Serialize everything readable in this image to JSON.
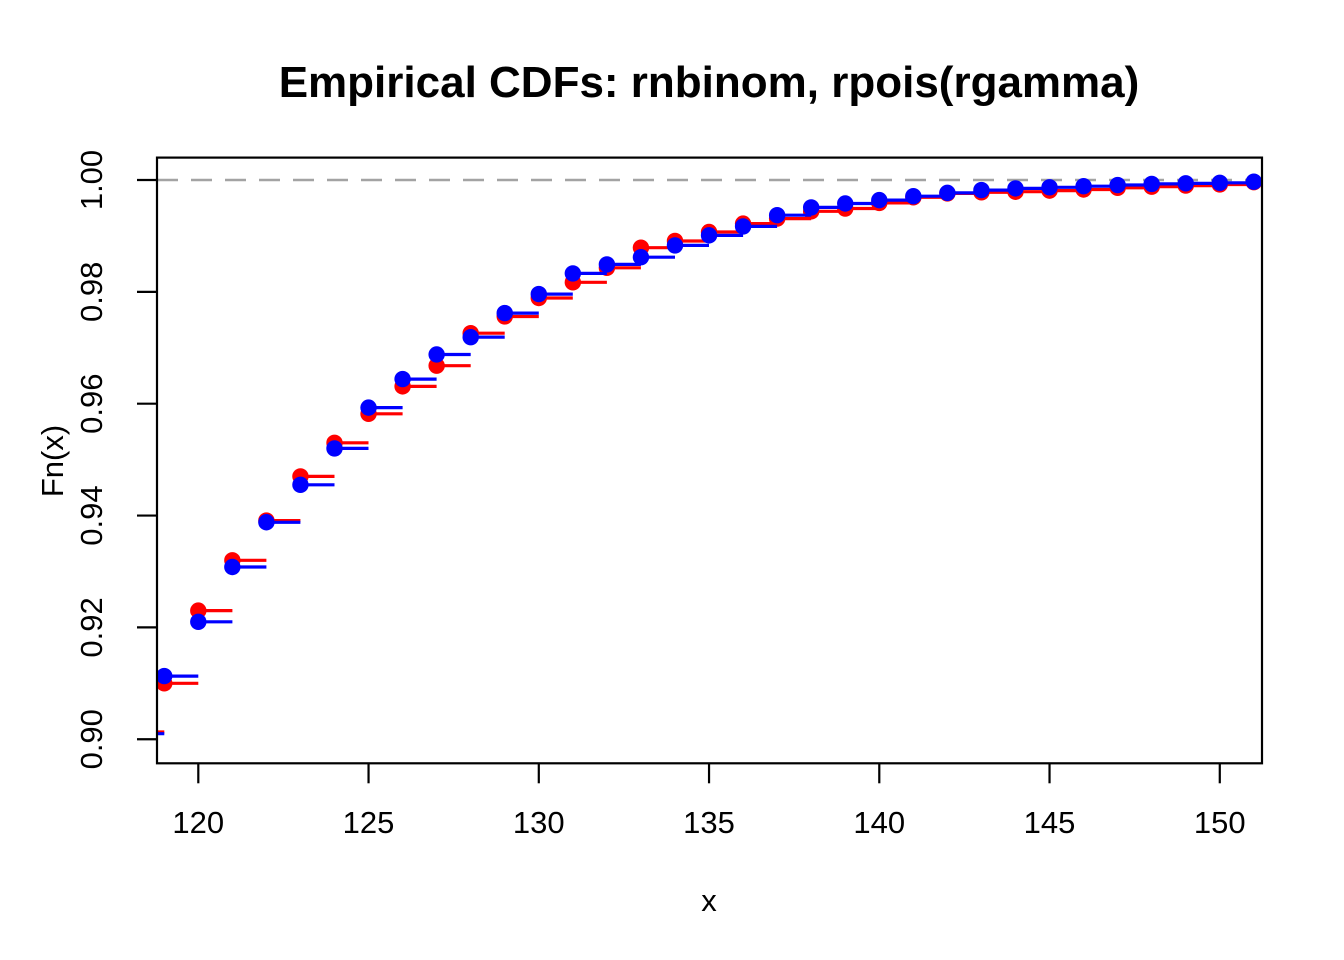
{
  "title": "Empirical CDFs: rnbinom, rpois(rgamma)",
  "chart_data": {
    "type": "line",
    "subtype": "ecdf-step",
    "title": "Empirical CDFs: rnbinom, rpois(rgamma)",
    "xlabel": "x",
    "ylabel": "Fn(x)",
    "x_ticks": [
      120,
      125,
      130,
      135,
      140,
      145,
      150
    ],
    "y_ticks": [
      0.9,
      0.92,
      0.94,
      0.96,
      0.98,
      1.0
    ],
    "xlim": [
      118.787,
      151.24
    ],
    "ylim": [
      0.8957,
      1.004
    ],
    "grid": false,
    "legend_position": "none",
    "marker": "filled-circle",
    "reference_line": {
      "y": 1.0,
      "style": "dashed",
      "color": "#a3a3a3"
    },
    "x": [
      119,
      120,
      121,
      122,
      123,
      124,
      125,
      126,
      127,
      128,
      129,
      130,
      131,
      132,
      133,
      134,
      135,
      136,
      137,
      138,
      139,
      140,
      141,
      142,
      143,
      144,
      145,
      146,
      147,
      148,
      149,
      150,
      151
    ],
    "series": [
      {
        "name": "rnbinom",
        "color": "#ff0000",
        "pre_level": 0.9013,
        "values": [
          0.91,
          0.923,
          0.932,
          0.9391,
          0.947,
          0.953,
          0.9582,
          0.9631,
          0.9668,
          0.9726,
          0.9756,
          0.9789,
          0.9817,
          0.9843,
          0.9879,
          0.9891,
          0.9907,
          0.9922,
          0.9931,
          0.9944,
          0.9949,
          0.9959,
          0.9969,
          0.9976,
          0.9978,
          0.9979,
          0.9981,
          0.9983,
          0.9986,
          0.9988,
          0.999,
          0.9992,
          0.9996
        ]
      },
      {
        "name": "rpois(rgamma)",
        "color": "#0000ff",
        "pre_level": 0.901,
        "values": [
          0.9113,
          0.921,
          0.9308,
          0.9388,
          0.9455,
          0.952,
          0.9593,
          0.9644,
          0.9688,
          0.9719,
          0.9762,
          0.9796,
          0.9833,
          0.9849,
          0.9862,
          0.9883,
          0.9901,
          0.9917,
          0.9937,
          0.9951,
          0.9958,
          0.9964,
          0.9971,
          0.9977,
          0.9982,
          0.9985,
          0.9987,
          0.9989,
          0.9991,
          0.9993,
          0.9994,
          0.9995,
          0.9997
        ]
      }
    ],
    "axis_color": "#000000"
  }
}
